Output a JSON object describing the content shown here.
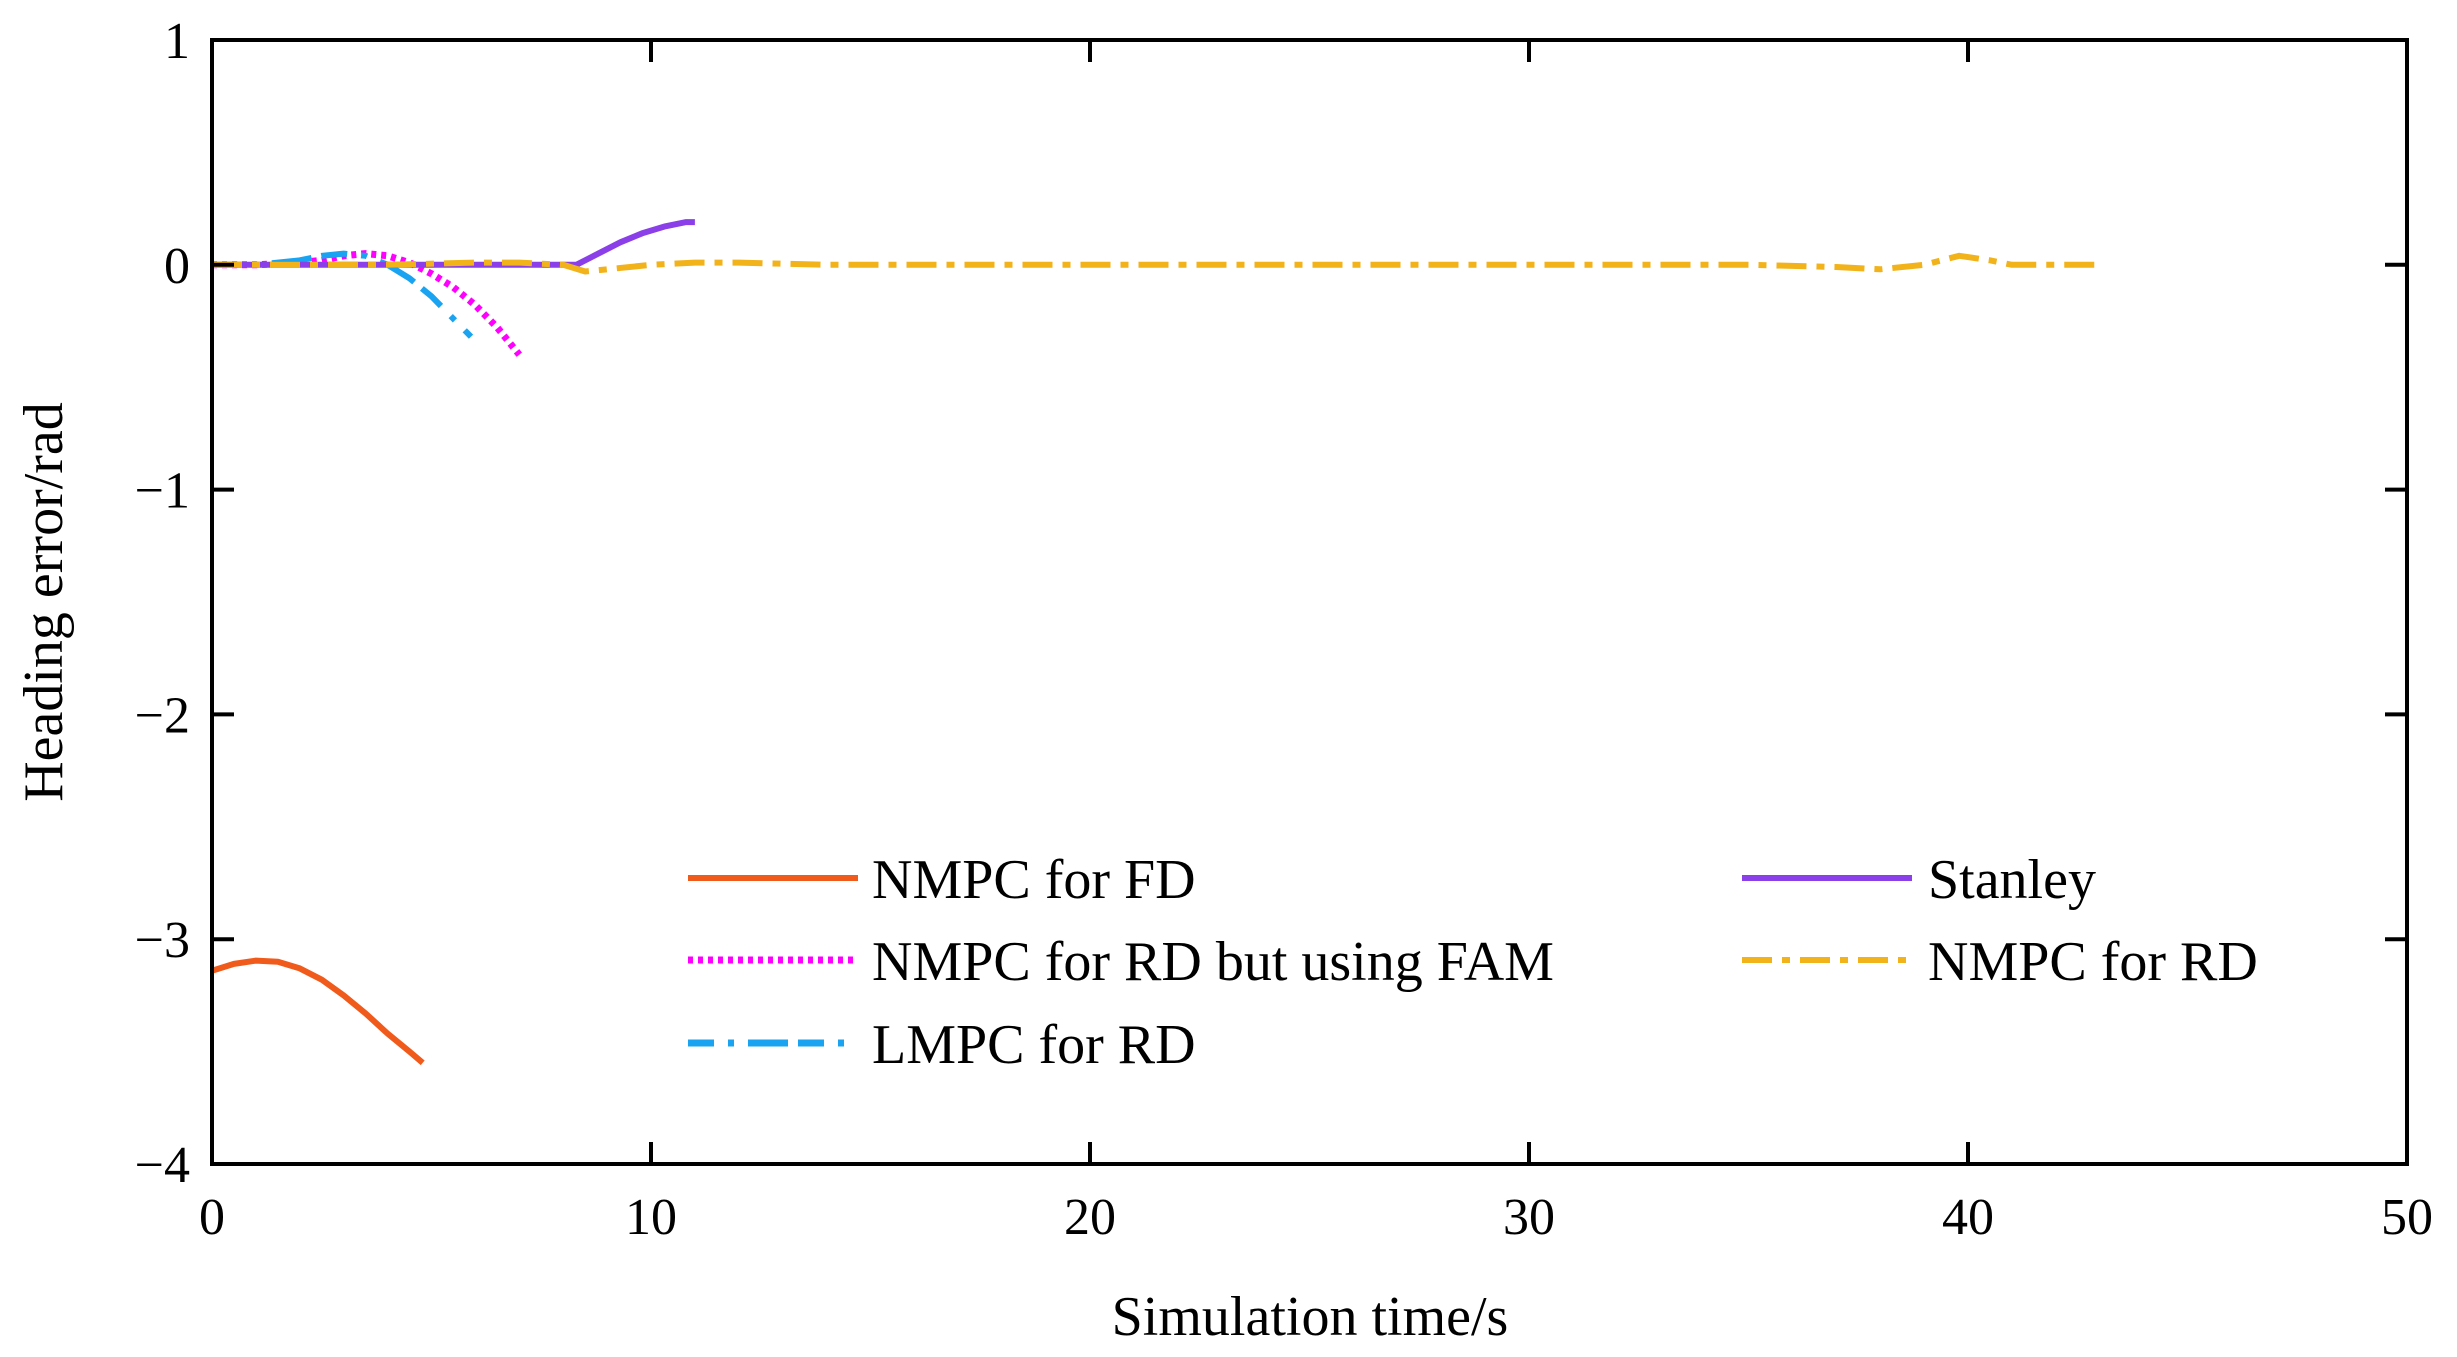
{
  "chart_data": {
    "type": "line",
    "title": "",
    "xlabel": "Simulation time/s",
    "ylabel": "Heading error/rad",
    "xlim": [
      0,
      50
    ],
    "ylim": [
      -4,
      1
    ],
    "xticks": [
      0,
      10,
      20,
      30,
      40,
      50
    ],
    "xtick_labels": [
      "0",
      "10",
      "20",
      "30",
      "40",
      "50"
    ],
    "yticks": [
      1,
      0,
      -1,
      -2,
      -3,
      -4
    ],
    "ytick_labels": [
      "1",
      "0",
      "−1",
      "−2",
      "−3",
      "−4"
    ],
    "grid": false,
    "legend_position": "lower-center",
    "series": [
      {
        "name": "NMPC for FD",
        "color": "#F05A1A",
        "style": "solid",
        "x": [
          0,
          0.5,
          1.0,
          1.5,
          2.0,
          2.5,
          3.0,
          3.5,
          4.0,
          4.5,
          4.8
        ],
        "y": [
          -3.14,
          -3.11,
          -3.095,
          -3.1,
          -3.13,
          -3.18,
          -3.25,
          -3.33,
          -3.42,
          -3.5,
          -3.55
        ]
      },
      {
        "name": "NMPC for RD but using FAM",
        "color": "#FF00FF",
        "style": "dotted",
        "x": [
          0,
          1,
          2,
          2.5,
          3,
          3.5,
          4,
          4.5,
          5,
          5.5,
          6,
          6.5,
          7.0
        ],
        "y": [
          0,
          0,
          0.01,
          0.02,
          0.04,
          0.05,
          0.04,
          0.01,
          -0.04,
          -0.1,
          -0.18,
          -0.28,
          -0.4
        ]
      },
      {
        "name": "LMPC for RD",
        "color": "#1AA3F0",
        "style": "dashed",
        "x": [
          0,
          1,
          1.5,
          2,
          2.5,
          3,
          3.5,
          4,
          4.5,
          5,
          5.5,
          5.9
        ],
        "y": [
          0,
          0,
          0.01,
          0.02,
          0.04,
          0.05,
          0.04,
          0.0,
          -0.06,
          -0.14,
          -0.24,
          -0.32
        ]
      },
      {
        "name": "Stanley",
        "color": "#8A3FE8",
        "style": "solid",
        "x": [
          0,
          2,
          4,
          6,
          8,
          8.3,
          8.8,
          9.3,
          9.8,
          10.3,
          10.8,
          11.0
        ],
        "y": [
          0,
          0,
          0,
          0,
          0,
          0.0,
          0.05,
          0.1,
          0.14,
          0.17,
          0.19,
          0.19
        ]
      },
      {
        "name": "NMPC for RD",
        "color": "#F2B21A",
        "style": "dashdot",
        "x": [
          0,
          2,
          4,
          6,
          7,
          8,
          8.5,
          9,
          10,
          11,
          12,
          14,
          16,
          20,
          25,
          30,
          35,
          37,
          38,
          39,
          39.8,
          40.5,
          41,
          42,
          43
        ],
        "y": [
          0,
          0,
          0,
          0.01,
          0.01,
          0.0,
          -0.03,
          -0.02,
          0.0,
          0.01,
          0.01,
          0.0,
          0.0,
          0.0,
          0.0,
          0.0,
          0.0,
          -0.01,
          -0.02,
          0.0,
          0.04,
          0.02,
          0.0,
          0.0,
          0.0
        ]
      }
    ]
  }
}
